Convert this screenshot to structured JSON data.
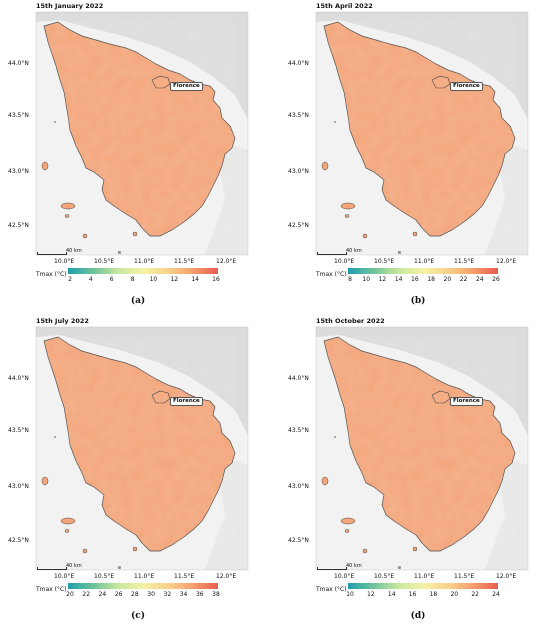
{
  "panels": [
    {
      "title": "15th January 2022",
      "caption": "(a)",
      "ticks": [
        "2",
        "4",
        "6",
        "8",
        "10",
        "12",
        "14",
        "16"
      ]
    },
    {
      "title": "15th April 2022",
      "caption": "(b)",
      "ticks": [
        "8",
        "10",
        "12",
        "14",
        "16",
        "18",
        "20",
        "22",
        "24",
        "26"
      ]
    },
    {
      "title": "15th July 2022",
      "caption": "(c)",
      "ticks": [
        "20",
        "22",
        "24",
        "26",
        "28",
        "30",
        "32",
        "34",
        "36",
        "38"
      ]
    },
    {
      "title": "15th October 2022",
      "caption": "(d)",
      "ticks": [
        "10",
        "12",
        "14",
        "16",
        "18",
        "20",
        "22",
        "24"
      ]
    }
  ],
  "common": {
    "lat_labels": [
      "44.0°N",
      "43.5°N",
      "43.0°N",
      "42.5°N"
    ],
    "lon_labels": [
      "10.0°E",
      "10.5°E",
      "11.0°E",
      "11.5°E",
      "12.0°E"
    ],
    "city": "Florence",
    "scale_text": "40 km",
    "north": "e",
    "colorbar_label": "Tmax (°C)"
  },
  "colors": {
    "low": "#1f9eae",
    "mid": "#f4f1a6",
    "high": "#ea5a4f",
    "region_fill": "#f4a57a",
    "relief": "#e3e3e3"
  }
}
